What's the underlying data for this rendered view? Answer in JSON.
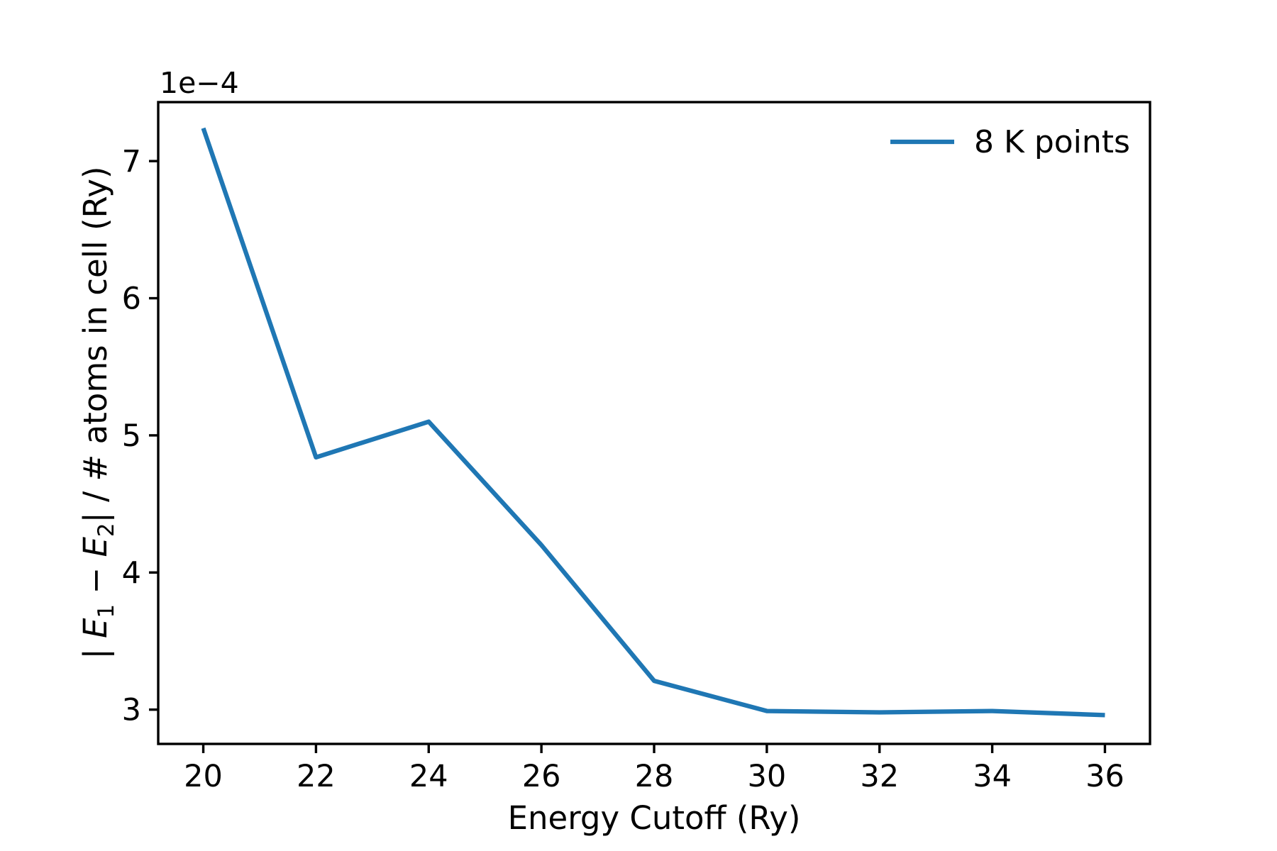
{
  "figure": {
    "background": "#ffffff",
    "offset_text": "1e−4",
    "xlabel": "Energy Cutoff (Ry)",
    "ylabel_parts": {
      "p1": "| E",
      "sub1": "1",
      "p2": " − E",
      "sub2": "2",
      "p3": "| / # atoms in cell (Ry)"
    },
    "legend": {
      "entries": [
        {
          "label": "8 K points",
          "color": "#1f77b4"
        }
      ]
    }
  },
  "chart_data": {
    "type": "line",
    "title": "",
    "xlabel": "Energy Cutoff (Ry)",
    "ylabel": "| E1 − E2 | / # atoms in cell (Ry)",
    "y_scale_note": "y axis values are multiplied by 1e-4 (offset text shown top-left)",
    "x": [
      20,
      22,
      24,
      26,
      28,
      30,
      32,
      34,
      36
    ],
    "series": [
      {
        "name": "8 K points",
        "color": "#1f77b4",
        "x": [
          20,
          22,
          24,
          26,
          28,
          30,
          32,
          34,
          36
        ],
        "y_times_1e4": [
          7.24,
          4.84,
          5.1,
          4.2,
          3.21,
          2.99,
          2.98,
          2.99,
          2.96
        ],
        "y": [
          0.000724,
          0.000484,
          0.00051,
          0.00042,
          0.000321,
          0.000299,
          0.000298,
          0.000299,
          0.000296
        ]
      }
    ],
    "xlim": [
      19.2,
      36.8
    ],
    "ylim_times_1e4": [
      2.75,
      7.43
    ],
    "xticks": [
      20,
      22,
      24,
      26,
      28,
      30,
      32,
      34,
      36
    ],
    "yticks_times_1e4": [
      3,
      4,
      5,
      6,
      7
    ],
    "grid": false,
    "legend_position": "upper right"
  },
  "colors": {
    "line": "#1f77b4",
    "axes": "#000000",
    "text": "#000000"
  }
}
